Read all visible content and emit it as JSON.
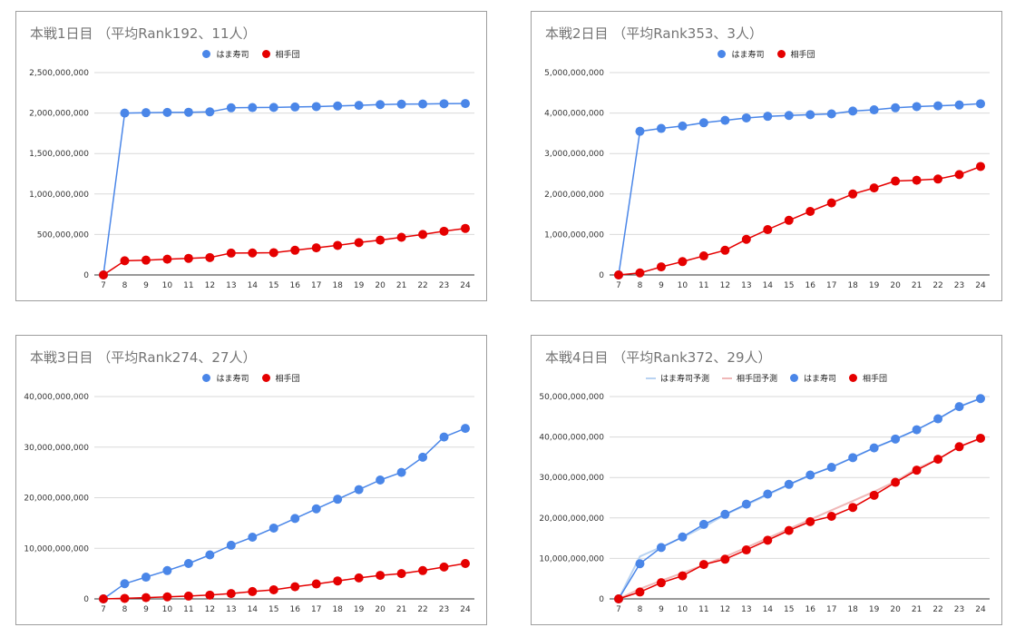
{
  "colors": {
    "hama": "#4a86e8",
    "aite": "#e50000",
    "hama_pred": "#b9d3f2",
    "aite_pred": "#f0b8b8",
    "grid": "#d9d9d9",
    "axis": "#333333"
  },
  "chart_data": [
    {
      "type": "line",
      "title": "本戦1日目 （平均Rank192、11人）",
      "x": [
        "7",
        "8",
        "9",
        "10",
        "11",
        "12",
        "13",
        "14",
        "15",
        "16",
        "17",
        "18",
        "19",
        "20",
        "21",
        "22",
        "23",
        "24"
      ],
      "ylim": [
        0,
        2500000000
      ],
      "yticks": [
        "0",
        "500,000,000",
        "1,000,000,000",
        "1,500,000,000",
        "2,000,000,000",
        "2,500,000,000"
      ],
      "legend_position": "top",
      "grid": true,
      "series": [
        {
          "name": "はま寿司",
          "color": "#4a86e8",
          "marker": true,
          "values": [
            0,
            2000000000,
            2005000000,
            2008000000,
            2010000000,
            2015000000,
            2065000000,
            2068000000,
            2070000000,
            2075000000,
            2080000000,
            2088000000,
            2095000000,
            2105000000,
            2110000000,
            2112000000,
            2115000000,
            2118000000
          ]
        },
        {
          "name": "相手団",
          "color": "#e50000",
          "marker": true,
          "values": [
            0,
            175000000,
            183000000,
            195000000,
            205000000,
            215000000,
            270000000,
            272000000,
            275000000,
            305000000,
            335000000,
            365000000,
            400000000,
            430000000,
            465000000,
            500000000,
            540000000,
            575000000
          ]
        }
      ]
    },
    {
      "type": "line",
      "title": "本戦2日目 （平均Rank353、3人）",
      "x": [
        "7",
        "8",
        "9",
        "10",
        "11",
        "12",
        "13",
        "14",
        "15",
        "16",
        "17",
        "18",
        "19",
        "20",
        "21",
        "22",
        "23",
        "24"
      ],
      "ylim": [
        0,
        5000000000
      ],
      "yticks": [
        "0",
        "1,000,000,000",
        "2,000,000,000",
        "3,000,000,000",
        "4,000,000,000",
        "5,000,000,000"
      ],
      "legend_position": "top",
      "grid": true,
      "series": [
        {
          "name": "はま寿司",
          "color": "#4a86e8",
          "marker": true,
          "values": [
            0,
            3550000000,
            3620000000,
            3680000000,
            3760000000,
            3820000000,
            3880000000,
            3920000000,
            3940000000,
            3960000000,
            3980000000,
            4050000000,
            4080000000,
            4130000000,
            4160000000,
            4180000000,
            4200000000,
            4230000000
          ]
        },
        {
          "name": "相手団",
          "color": "#e50000",
          "marker": true,
          "values": [
            0,
            50000000,
            200000000,
            330000000,
            470000000,
            610000000,
            880000000,
            1120000000,
            1350000000,
            1570000000,
            1780000000,
            2000000000,
            2150000000,
            2320000000,
            2340000000,
            2370000000,
            2480000000,
            2680000000
          ]
        }
      ]
    },
    {
      "type": "line",
      "title": "本戦3日目 （平均Rank274、27人）",
      "x": [
        "7",
        "8",
        "9",
        "10",
        "11",
        "12",
        "13",
        "14",
        "15",
        "16",
        "17",
        "18",
        "19",
        "20",
        "21",
        "22",
        "23",
        "24"
      ],
      "ylim": [
        0,
        40000000000
      ],
      "yticks": [
        "0",
        "10,000,000,000",
        "20,000,000,000",
        "30,000,000,000",
        "40,000,000,000"
      ],
      "legend_position": "top",
      "grid": true,
      "series": [
        {
          "name": "はま寿司",
          "color": "#4a86e8",
          "marker": true,
          "values": [
            0,
            3000000000,
            4300000000,
            5600000000,
            7000000000,
            8700000000,
            10600000000,
            12200000000,
            14000000000,
            15900000000,
            17800000000,
            19700000000,
            21600000000,
            23500000000,
            25000000000,
            28000000000,
            32000000000,
            33700000000
          ]
        },
        {
          "name": "相手団",
          "color": "#e50000",
          "marker": true,
          "values": [
            0,
            100000000,
            250000000,
            400000000,
            550000000,
            750000000,
            1050000000,
            1450000000,
            1800000000,
            2400000000,
            2950000000,
            3550000000,
            4150000000,
            4650000000,
            5000000000,
            5600000000,
            6300000000,
            7000000000
          ]
        }
      ]
    },
    {
      "type": "line",
      "title": "本戦4日目 （平均Rank372、29人）",
      "x": [
        "7",
        "8",
        "9",
        "10",
        "11",
        "12",
        "13",
        "14",
        "15",
        "16",
        "17",
        "18",
        "19",
        "20",
        "21",
        "22",
        "23",
        "24"
      ],
      "ylim": [
        0,
        50000000000
      ],
      "yticks": [
        "0",
        "10,000,000,000",
        "20,000,000,000",
        "30,000,000,000",
        "40,000,000,000",
        "50,000,000,000"
      ],
      "legend_position": "top",
      "grid": true,
      "series": [
        {
          "name": "はま寿司予測",
          "color": "#b9d3f2",
          "marker": false,
          "values": [
            0,
            10500000000,
            12800000000,
            15200000000,
            17800000000,
            20800000000,
            23200000000,
            25700000000,
            28200000000,
            30500000000,
            32600000000,
            34900000000,
            37300000000,
            39400000000,
            41800000000,
            44400000000,
            47500000000,
            49600000000
          ]
        },
        {
          "name": "相手団予測",
          "color": "#f0b8b8",
          "marker": false,
          "values": [
            0,
            2500000000,
            4500000000,
            6400000000,
            8400000000,
            10400000000,
            12700000000,
            15000000000,
            17300000000,
            19600000000,
            21900000000,
            24200000000,
            26500000000,
            29000000000,
            32200000000,
            34500000000,
            37600000000,
            39600000000
          ]
        },
        {
          "name": "はま寿司",
          "color": "#4a86e8",
          "marker": true,
          "values": [
            0,
            8700000000,
            12700000000,
            15300000000,
            18400000000,
            20900000000,
            23400000000,
            25900000000,
            28300000000,
            30600000000,
            32500000000,
            34900000000,
            37300000000,
            39500000000,
            41800000000,
            44500000000,
            47500000000,
            49500000000
          ]
        },
        {
          "name": "相手団",
          "color": "#e50000",
          "marker": true,
          "values": [
            0,
            1700000000,
            4000000000,
            5700000000,
            8500000000,
            9800000000,
            12100000000,
            14500000000,
            16900000000,
            19100000000,
            20400000000,
            22600000000,
            25600000000,
            28800000000,
            31800000000,
            34500000000,
            37600000000,
            39700000000
          ]
        }
      ]
    }
  ]
}
